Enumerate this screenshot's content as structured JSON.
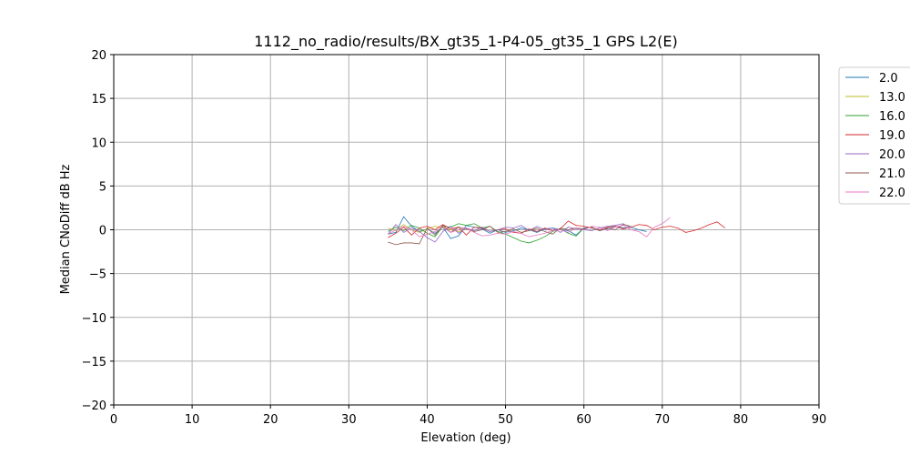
{
  "chart_data": {
    "type": "line",
    "title": "1112_no_radio/results/BX_gt35_1-P4-05_gt35_1 GPS L2(E)",
    "xlabel": "Elevation (deg)",
    "ylabel": "Median CNoDiff dB Hz",
    "xlim": [
      0,
      90
    ],
    "ylim": [
      -20,
      20
    ],
    "x_ticks": [
      0,
      10,
      20,
      30,
      40,
      50,
      60,
      70,
      80,
      90
    ],
    "y_ticks": [
      -20,
      -15,
      -10,
      -5,
      0,
      5,
      10,
      15,
      20
    ],
    "grid": true,
    "legend_position": "outside-right-top",
    "series": [
      {
        "name": "2.0",
        "color": "#1f77b4",
        "x": [
          35,
          36,
          37,
          38,
          39,
          40,
          41,
          42,
          43,
          44,
          45,
          46,
          47,
          48,
          49,
          50,
          51,
          52,
          53,
          54,
          55,
          56,
          57,
          58,
          59,
          60,
          61,
          62,
          63,
          64,
          65,
          66,
          67,
          68
        ],
        "y": [
          -0.5,
          -0.3,
          1.5,
          0.4,
          -0.2,
          0.1,
          -0.4,
          0.3,
          -1.0,
          -0.7,
          0.5,
          0.3,
          0.1,
          -0.4,
          0.0,
          -0.3,
          -0.1,
          0.2,
          0.0,
          -0.3,
          0.1,
          0.2,
          0.0,
          -0.1,
          -0.6,
          0.2,
          0.3,
          -0.1,
          0.1,
          0.4,
          0.2,
          0.3,
          0.0,
          -0.2
        ]
      },
      {
        "name": "13.0",
        "color": "#bcbd22",
        "x": [
          35,
          36,
          37,
          38,
          39,
          40,
          41,
          42,
          43,
          44,
          45
        ],
        "y": [
          0.2,
          -0.1,
          0.6,
          0.0,
          -0.3,
          0.1,
          0.4,
          0.2,
          0.0,
          -0.2,
          0.1
        ]
      },
      {
        "name": "16.0",
        "color": "#2ca02c",
        "x": [
          35,
          36,
          37,
          38,
          39,
          40,
          41,
          42,
          43,
          44,
          45,
          46,
          47,
          48,
          49,
          50,
          51,
          52,
          53,
          54,
          55,
          56,
          57,
          58,
          59,
          60
        ],
        "y": [
          -0.2,
          0.3,
          -0.1,
          0.5,
          0.2,
          -0.4,
          -0.8,
          0.4,
          0.3,
          0.7,
          0.5,
          0.7,
          0.2,
          0.4,
          -0.2,
          -0.5,
          -0.9,
          -1.3,
          -1.5,
          -1.2,
          -0.8,
          -0.2,
          0.1,
          -0.4,
          -0.7,
          0.2
        ]
      },
      {
        "name": "19.0",
        "color": "#d62728",
        "x": [
          35,
          36,
          37,
          38,
          39,
          40,
          41,
          42,
          43,
          44,
          45,
          46,
          47,
          48,
          49,
          50,
          51,
          52,
          53,
          54,
          55,
          56,
          57,
          58,
          59,
          60,
          61,
          62,
          63,
          64,
          65,
          66,
          67,
          68,
          69,
          70,
          71,
          72,
          73,
          74,
          75,
          76,
          77,
          78
        ],
        "y": [
          -0.9,
          -0.4,
          0.3,
          -0.6,
          0.2,
          0.4,
          0.0,
          0.6,
          0.1,
          0.3,
          -0.6,
          0.3,
          0.2,
          -0.2,
          0.0,
          0.1,
          -0.3,
          -0.4,
          0.1,
          -0.2,
          0.2,
          -0.1,
          0.1,
          1.0,
          0.5,
          0.4,
          0.2,
          0.0,
          0.3,
          0.4,
          0.1,
          0.3,
          0.6,
          0.5,
          0.0,
          0.3,
          0.4,
          0.2,
          -0.3,
          -0.1,
          0.2,
          0.6,
          0.9,
          0.2
        ]
      },
      {
        "name": "20.0",
        "color": "#9467bd",
        "x": [
          35,
          36,
          37,
          38,
          39,
          40,
          41,
          42,
          43,
          44,
          45,
          46,
          47,
          48,
          49,
          50,
          51,
          52,
          53,
          54,
          55,
          56,
          57,
          58,
          59,
          60,
          61,
          62,
          63,
          64,
          65,
          66
        ],
        "y": [
          -0.5,
          0.6,
          -0.3,
          0.2,
          -0.2,
          -0.9,
          -1.4,
          -0.2,
          0.4,
          -0.4,
          0.2,
          -0.1,
          0.3,
          -0.2,
          0.0,
          0.3,
          0.2,
          0.5,
          -0.1,
          0.4,
          0.0,
          0.2,
          -0.3,
          0.3,
          0.1,
          0.0,
          -0.1,
          0.2,
          0.4,
          0.5,
          0.7,
          0.2
        ]
      },
      {
        "name": "21.0",
        "color": "#8c564b",
        "x": [
          35,
          36,
          37,
          38,
          39,
          40,
          41,
          42,
          43,
          44,
          45,
          46,
          47,
          48,
          49,
          50,
          51,
          52,
          53,
          54,
          55,
          56,
          57,
          58,
          59,
          60,
          61,
          62,
          63,
          64,
          65,
          66
        ],
        "y": [
          -1.4,
          -1.7,
          -1.5,
          -1.5,
          -1.6,
          0.2,
          -0.6,
          0.5,
          -0.3,
          0.3,
          0.1,
          -0.2,
          0.0,
          0.4,
          -0.3,
          -0.2,
          0.1,
          -0.3,
          -0.1,
          0.2,
          -0.2,
          -0.5,
          0.2,
          0.0,
          0.2,
          0.1,
          0.3,
          -0.1,
          0.2,
          0.0,
          0.6,
          0.4
        ]
      },
      {
        "name": "22.0",
        "color": "#e377c2",
        "x": [
          35,
          36,
          37,
          38,
          39,
          40,
          41,
          42,
          43,
          44,
          45,
          46,
          47,
          48,
          49,
          50,
          51,
          52,
          53,
          54,
          55,
          56,
          57,
          58,
          59,
          60,
          61,
          62,
          63,
          64,
          65,
          66,
          67,
          68,
          69,
          70,
          71
        ],
        "y": [
          -0.5,
          0.0,
          0.4,
          0.0,
          -0.8,
          -0.5,
          -0.2,
          0.3,
          -0.3,
          0.0,
          0.2,
          -0.3,
          -0.7,
          -0.6,
          -0.4,
          -0.5,
          -0.2,
          -0.4,
          -0.8,
          -0.6,
          -0.4,
          -0.1,
          0.0,
          -0.3,
          0.2,
          0.0,
          0.4,
          0.3,
          -0.1,
          0.3,
          0.5,
          0.0,
          -0.2,
          -0.8,
          0.3,
          0.7,
          1.4
        ]
      }
    ]
  }
}
